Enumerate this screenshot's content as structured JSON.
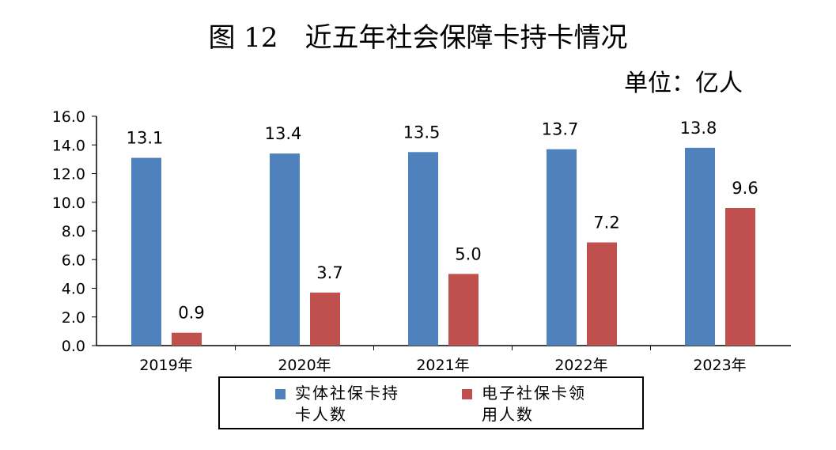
{
  "chart_data": {
    "type": "bar",
    "title": "图 12　近五年社会保障卡持卡情况",
    "unit_label": "单位：亿人",
    "categories": [
      "2019年",
      "2020年",
      "2021年",
      "2022年",
      "2023年"
    ],
    "series": [
      {
        "name": "实体社保卡持卡人数",
        "color": "#4f81bd",
        "values": [
          13.1,
          13.4,
          13.5,
          13.7,
          13.8
        ]
      },
      {
        "name": "电子社保卡领用人数",
        "color": "#c0504d",
        "values": [
          0.9,
          3.7,
          5.0,
          7.2,
          9.6
        ]
      }
    ],
    "ylim": [
      0,
      16
    ],
    "yticks": [
      "0.0",
      "2.0",
      "4.0",
      "6.0",
      "8.0",
      "10.0",
      "12.0",
      "14.0",
      "16.0"
    ],
    "data_labels": [
      [
        "13.1",
        "13.4",
        "13.5",
        "13.7",
        "13.8"
      ],
      [
        "0.9",
        "3.7",
        "5.0",
        "7.2",
        "9.6"
      ]
    ],
    "grid": false,
    "legend_position": "bottom"
  }
}
